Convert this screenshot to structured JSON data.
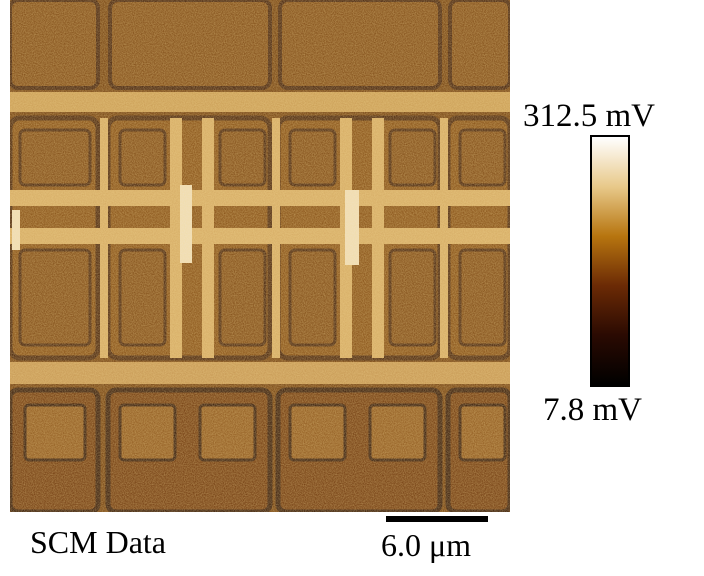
{
  "image": {
    "title": "SCM Data",
    "type": "scanning capacitance microscopy map"
  },
  "colorbar": {
    "max_label": "312.5 mV",
    "min_label": "7.8 mV",
    "colors": [
      "#ffffff",
      "#e8c98a",
      "#b7750f",
      "#6b2a05",
      "#2a0a02",
      "#000000"
    ]
  },
  "scale_bar": {
    "label": "6.0 μm"
  }
}
